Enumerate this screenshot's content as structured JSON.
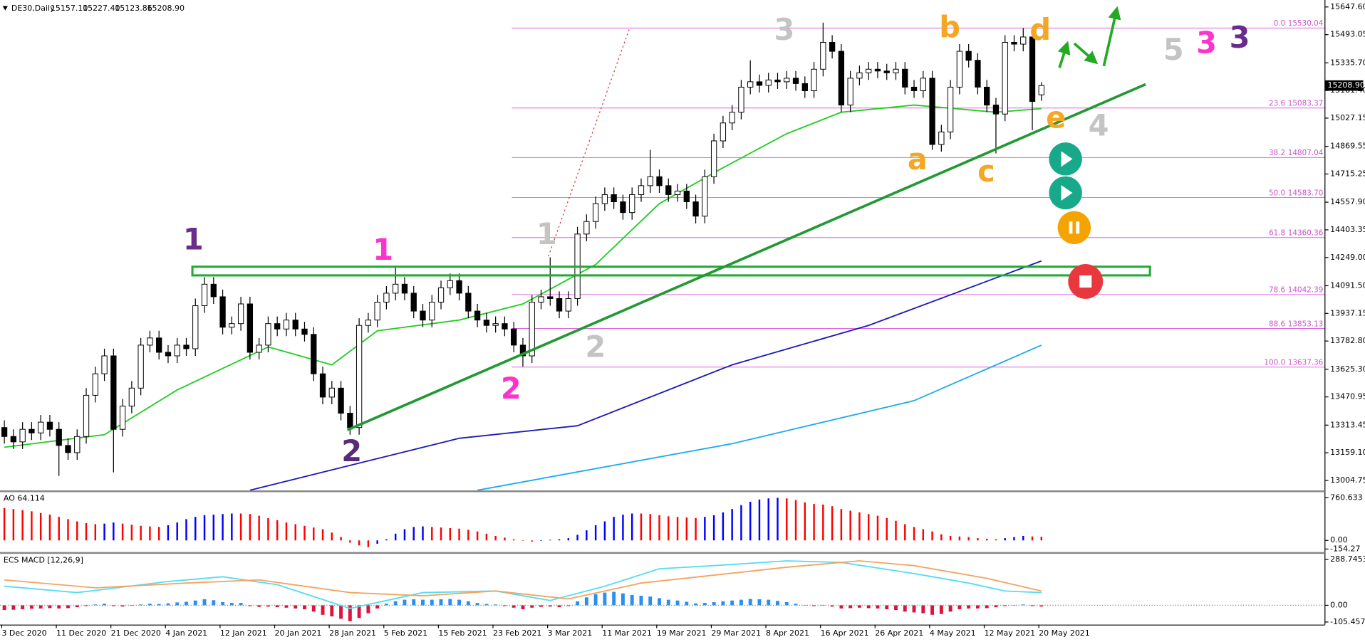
{
  "chart_data": {
    "type": "candlestick",
    "symbol": "DE30,Daily",
    "ohlc_labels": [
      "15157.10",
      "15227.40",
      "15123.86",
      "15208.90"
    ],
    "last_price_label": "15208.90",
    "up_color": "#ffffff",
    "down_color": "#000000",
    "open": [
      13300,
      13250,
      13220,
      13290,
      13270,
      13330,
      13290,
      13200,
      13160,
      13250,
      13480,
      13600,
      13700,
      13290,
      13420,
      13520,
      13760,
      13800,
      13720,
      13700,
      13760,
      13740,
      13980,
      14100,
      14030,
      13860,
      13880,
      13990,
      13720,
      13760,
      13880,
      13850,
      13900,
      13850,
      13820,
      13600,
      13470,
      13520,
      13380,
      13300,
      13870,
      13900,
      14000,
      14050,
      14100,
      14050,
      13950,
      13900,
      14000,
      14080,
      14120,
      14050,
      13950,
      13900,
      13870,
      13880,
      13850,
      13760,
      13700,
      14000,
      14030,
      14020,
      13950,
      14020,
      14380,
      14450,
      14550,
      14600,
      14560,
      14500,
      14600,
      14650,
      14700,
      14650,
      14600,
      14620,
      14560,
      14480,
      14700,
      14900,
      15000,
      15060,
      15200,
      15230,
      15210,
      15240,
      15230,
      15250,
      15220,
      15180,
      15300,
      15450,
      15400,
      15100,
      15250,
      15280,
      15300,
      15290,
      15280,
      15300,
      15200,
      15180,
      15250,
      14880,
      14950,
      15200,
      15400,
      15350,
      15200,
      15100,
      15050,
      15450,
      15440,
      15480,
      15157.1
    ],
    "high": [
      13340,
      13290,
      13330,
      13330,
      13370,
      13370,
      13330,
      13240,
      13290,
      13520,
      13640,
      13740,
      13740,
      13460,
      13560,
      13800,
      13840,
      13840,
      13760,
      13800,
      13800,
      14020,
      14140,
      14140,
      14070,
      13920,
      14030,
      14030,
      13800,
      13920,
      13920,
      13940,
      13940,
      13890,
      13860,
      13640,
      13560,
      13560,
      13420,
      13910,
      13940,
      14040,
      14090,
      14200,
      14140,
      14090,
      13990,
      14040,
      14120,
      14160,
      14160,
      14090,
      13990,
      13940,
      13920,
      13920,
      13890,
      13800,
      14040,
      14070,
      14250,
      14060,
      14060,
      14420,
      14490,
      14590,
      14640,
      14640,
      14600,
      14640,
      14690,
      14850,
      14740,
      14690,
      14660,
      14660,
      14600,
      14740,
      14940,
      15040,
      15100,
      15240,
      15350,
      15270,
      15280,
      15280,
      15290,
      15290,
      15260,
      15340,
      15560,
      15490,
      15440,
      15290,
      15320,
      15340,
      15340,
      15330,
      15340,
      15340,
      15240,
      15290,
      15290,
      14990,
      15240,
      15440,
      15440,
      15390,
      15240,
      15140,
      15490,
      15490,
      15530,
      15520,
      15227.4
    ],
    "low": [
      13210,
      13180,
      13180,
      13230,
      13230,
      13250,
      13030,
      13120,
      13120,
      13210,
      13440,
      13560,
      13050,
      13250,
      13380,
      13480,
      13720,
      13680,
      13660,
      13660,
      13700,
      13700,
      13940,
      13990,
      13820,
      13820,
      13840,
      13680,
      13680,
      13720,
      13810,
      13810,
      13810,
      13780,
      13560,
      13430,
      13430,
      13340,
      13260,
      13260,
      13830,
      13860,
      13960,
      14010,
      14010,
      13910,
      13860,
      13860,
      13960,
      14040,
      14010,
      13910,
      13860,
      13830,
      13830,
      13810,
      13720,
      13640,
      13660,
      13960,
      13980,
      13910,
      13910,
      13980,
      14340,
      14410,
      14510,
      14520,
      14460,
      14460,
      14560,
      14610,
      14610,
      14560,
      14560,
      14520,
      14440,
      14440,
      14660,
      14860,
      14960,
      15020,
      15160,
      15170,
      15170,
      15190,
      15190,
      15180,
      15140,
      15140,
      15260,
      15360,
      15060,
      15060,
      15210,
      15240,
      15250,
      15240,
      15240,
      15160,
      15140,
      15140,
      14850,
      14840,
      14910,
      15160,
      15310,
      15160,
      15060,
      14830,
      15010,
      15400,
      15400,
      14960,
      15123.86
    ],
    "close": [
      13250,
      13220,
      13290,
      13270,
      13330,
      13290,
      13200,
      13160,
      13250,
      13480,
      13600,
      13700,
      13290,
      13420,
      13520,
      13760,
      13800,
      13720,
      13700,
      13760,
      13740,
      13980,
      14100,
      14030,
      13860,
      13880,
      13990,
      13720,
      13760,
      13880,
      13850,
      13900,
      13850,
      13820,
      13600,
      13470,
      13520,
      13380,
      13300,
      13870,
      13900,
      14000,
      14050,
      14100,
      14050,
      13950,
      13900,
      14000,
      14080,
      14120,
      14050,
      13950,
      13900,
      13870,
      13880,
      13850,
      13760,
      13700,
      14000,
      14030,
      14020,
      13950,
      14020,
      14380,
      14450,
      14550,
      14600,
      14560,
      14500,
      14600,
      14650,
      14700,
      14650,
      14600,
      14620,
      14560,
      14480,
      14700,
      14900,
      15000,
      15060,
      15200,
      15230,
      15210,
      15240,
      15230,
      15250,
      15220,
      15180,
      15300,
      15450,
      15400,
      15100,
      15250,
      15280,
      15300,
      15290,
      15280,
      15300,
      15200,
      15180,
      15250,
      14880,
      14950,
      15200,
      15400,
      15350,
      15200,
      15100,
      15050,
      15450,
      15440,
      15480,
      15120,
      15208.9
    ],
    "ylim": [
      12946.7,
      15686.4
    ],
    "yticks": [
      {
        "value": 15647.6,
        "label": "15647.60"
      },
      {
        "value": 15493.05,
        "label": "15493.05"
      },
      {
        "value": 15335.7,
        "label": "15335.70"
      },
      {
        "value": 15181.4,
        "label": "15181.40"
      },
      {
        "value": 15027.15,
        "label": "15027.15"
      },
      {
        "value": 14869.55,
        "label": "14869.55"
      },
      {
        "value": 14715.25,
        "label": "14715.25"
      },
      {
        "value": 14557.9,
        "label": "14557.90"
      },
      {
        "value": 14403.35,
        "label": "14403.35"
      },
      {
        "value": 14249,
        "label": "14249.00"
      },
      {
        "value": 14091.5,
        "label": "14091.50"
      },
      {
        "value": 13937.15,
        "label": "13937.15"
      },
      {
        "value": 13782.8,
        "label": "13782.80"
      },
      {
        "value": 13625.3,
        "label": "13625.30"
      },
      {
        "value": 13470.95,
        "label": "13470.95"
      },
      {
        "value": 13313.45,
        "label": "13313.45"
      },
      {
        "value": 13159.1,
        "label": "13159.10"
      },
      {
        "value": 13004.75,
        "label": "13004.75"
      }
    ],
    "xticks": [
      {
        "value": 0,
        "label": "3 Dec 2020"
      },
      {
        "value": 6,
        "label": "11 Dec 2020"
      },
      {
        "value": 12,
        "label": "21 Dec 2020"
      },
      {
        "value": 18,
        "label": "4 Jan 2021"
      },
      {
        "value": 24,
        "label": "12 Jan 2021"
      },
      {
        "value": 30,
        "label": "20 Jan 2021"
      },
      {
        "value": 36,
        "label": "28 Jan 2021"
      },
      {
        "value": 42,
        "label": "5 Feb 2021"
      },
      {
        "value": 48,
        "label": "15 Feb 2021"
      },
      {
        "value": 54,
        "label": "23 Feb 2021"
      },
      {
        "value": 60,
        "label": "3 Mar 2021"
      },
      {
        "value": 66,
        "label": "11 Mar 2021"
      },
      {
        "value": 72,
        "label": "19 Mar 2021"
      },
      {
        "value": 78,
        "label": "29 Mar 2021"
      },
      {
        "value": 84,
        "label": "8 Apr 2021"
      },
      {
        "value": 90,
        "label": "16 Apr 2021"
      },
      {
        "value": 96,
        "label": "26 Apr 2021"
      },
      {
        "value": 102,
        "label": "4 May 2021"
      },
      {
        "value": 108,
        "label": "12 May 2021"
      },
      {
        "value": 114,
        "label": "20 May 2021"
      }
    ],
    "overlays": [
      {
        "color": "#22cc22",
        "x": [
          0,
          11,
          19,
          29,
          36,
          41,
          50,
          57,
          65,
          72,
          79,
          86,
          92,
          100,
          109,
          114
        ],
        "values": [
          13190,
          13260,
          13510,
          13750,
          13650,
          13840,
          13900,
          13990,
          14210,
          14550,
          14750,
          14940,
          15060,
          15100,
          15060,
          15080
        ]
      },
      {
        "color": "#1c1cb8",
        "x": [
          27,
          50,
          63,
          80,
          95,
          114
        ],
        "values": [
          12950,
          13240,
          13310,
          13650,
          13870,
          14230
        ]
      },
      {
        "color": "#1eaaee",
        "x": [
          52,
          80,
          100,
          114
        ],
        "values": [
          12950,
          13210,
          13450,
          13760
        ]
      }
    ],
    "fib_levels": [
      {
        "level": "0.0",
        "label": "15530.04",
        "value": 15530.04
      },
      {
        "level": "23.6",
        "label": "15083.37",
        "value": 15083.37
      },
      {
        "level": "38.2",
        "label": "14807.04",
        "value": 14807.04
      },
      {
        "level": "50.0",
        "label": "14583.70",
        "value": 14583.7
      },
      {
        "level": "61.8",
        "label": "14360.36",
        "value": 14360.36
      },
      {
        "level": "78.6",
        "label": "14042.39",
        "value": 14042.39
      },
      {
        "level": "88.6",
        "label": "13853.13",
        "value": 13853.13
      },
      {
        "level": "100.0",
        "label": "13637.36",
        "value": 13637.36
      }
    ],
    "fib_color": "#dd66dd",
    "waves": [
      {
        "text": "1",
        "color": "#6a2c8a"
      },
      {
        "text": "2",
        "color": "#5a2a7a"
      },
      {
        "text": "1",
        "color": "#ff33cc"
      },
      {
        "text": "2",
        "color": "#ff33cc"
      },
      {
        "text": "1",
        "color": "#c4c4c4"
      },
      {
        "text": "2",
        "color": "#c4c4c4"
      },
      {
        "text": "3",
        "color": "#c4c4c4"
      },
      {
        "text": "4",
        "color": "#c4c4c4"
      },
      {
        "text": "5",
        "color": "#c4c4c4"
      },
      {
        "text": "3",
        "color": "#ff33cc"
      },
      {
        "text": "3",
        "color": "#6a2c8a"
      },
      {
        "text": "a",
        "color": "#f5a623"
      },
      {
        "text": "b",
        "color": "#f5a623"
      },
      {
        "text": "c",
        "color": "#f5a623"
      },
      {
        "text": "d",
        "color": "#f5a623"
      },
      {
        "text": "e",
        "color": "#f5a623"
      }
    ],
    "ao": {
      "title": "AO 64.114",
      "up_color": "#0000ff",
      "down_color": "#ff0000",
      "ylim": [
        -154.27,
        760.633
      ],
      "yticks": [
        760.633,
        {
          "value": 0,
          "label": "0.00"
        },
        -154.27
      ],
      "values": [
        580,
        560,
        540,
        520,
        490,
        460,
        420,
        380,
        340,
        310,
        290,
        300,
        320,
        300,
        280,
        260,
        250,
        240,
        270,
        320,
        380,
        420,
        450,
        460,
        470,
        480,
        480,
        470,
        440,
        400,
        360,
        320,
        290,
        260,
        230,
        200,
        140,
        60,
        -40,
        -90,
        -120,
        -60,
        20,
        120,
        200,
        240,
        250,
        240,
        230,
        220,
        210,
        190,
        160,
        120,
        80,
        50,
        20,
        0,
        -20,
        -10,
        10,
        20,
        40,
        100,
        180,
        270,
        340,
        420,
        460,
        480,
        480,
        470,
        450,
        430,
        420,
        410,
        400,
        420,
        450,
        500,
        560,
        630,
        690,
        730,
        750,
        760,
        750,
        720,
        680,
        650,
        640,
        610,
        560,
        530,
        500,
        470,
        440,
        400,
        350,
        290,
        240,
        200,
        160,
        110,
        80,
        70,
        60,
        40,
        30,
        20,
        40,
        60,
        80,
        70,
        64.114
      ]
    },
    "macd": {
      "title": "ECS MACD [12,26,9]",
      "positive_color": "#2a8ff0",
      "negative_color": "#dc143c",
      "ylim": [
        -105.4574,
        288.7453
      ],
      "yticks": [
        288.7453,
        {
          "value": 0,
          "label": "0.00"
        },
        -105.4574
      ],
      "values": [
        -30,
        -28,
        -25,
        -22,
        -20,
        -18,
        -20,
        -18,
        -12,
        -5,
        5,
        10,
        -5,
        -8,
        -3,
        5,
        10,
        8,
        12,
        18,
        22,
        30,
        38,
        32,
        20,
        15,
        15,
        -5,
        -10,
        -8,
        -12,
        -15,
        -20,
        -25,
        -40,
        -60,
        -70,
        -85,
        -100,
        -80,
        -50,
        -20,
        10,
        25,
        35,
        38,
        35,
        35,
        38,
        40,
        35,
        25,
        15,
        8,
        5,
        -5,
        -15,
        -25,
        -15,
        -10,
        -8,
        -12,
        -5,
        25,
        50,
        70,
        80,
        85,
        75,
        65,
        60,
        55,
        45,
        35,
        30,
        22,
        12,
        15,
        20,
        25,
        30,
        35,
        40,
        38,
        35,
        28,
        20,
        10,
        2,
        -5,
        -2,
        -8,
        -20,
        -18,
        -15,
        -18,
        -20,
        -25,
        -30,
        -40,
        -45,
        -50,
        -60,
        -55,
        -40,
        -25,
        -20,
        -20,
        -18,
        -12,
        -5,
        2,
        5,
        -5,
        -8
      ],
      "lines": [
        {
          "color": "#55ddee",
          "x": [
            0,
            8,
            18,
            24,
            30,
            38,
            46,
            54,
            60,
            66,
            72,
            78,
            86,
            92,
            100,
            106,
            110,
            114
          ],
          "values": [
            120,
            80,
            150,
            180,
            130,
            -20,
            80,
            90,
            30,
            120,
            230,
            250,
            280,
            270,
            200,
            140,
            90,
            80
          ]
        },
        {
          "color": "#f4a460",
          "x": [
            0,
            10,
            20,
            28,
            38,
            46,
            54,
            62,
            70,
            78,
            86,
            94,
            100,
            108,
            114
          ],
          "values": [
            160,
            110,
            140,
            160,
            80,
            60,
            90,
            40,
            140,
            190,
            240,
            280,
            250,
            170,
            90
          ]
        }
      ]
    }
  }
}
